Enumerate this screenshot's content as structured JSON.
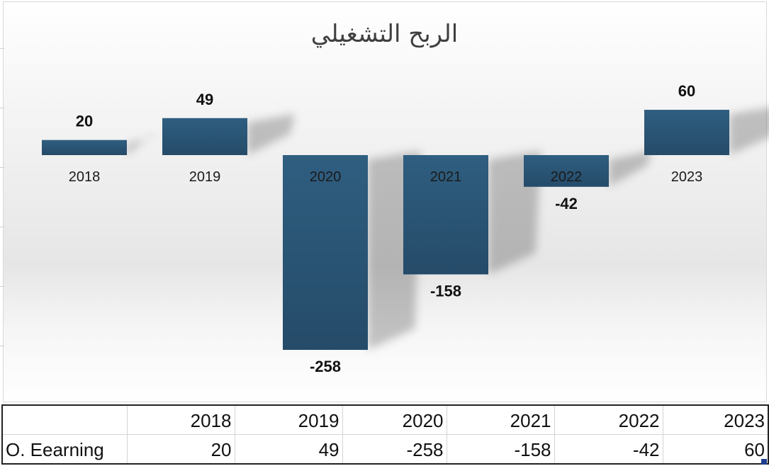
{
  "chart_data": {
    "type": "bar",
    "title": "الربح التشغيلي",
    "categories": [
      "2018",
      "2019",
      "2020",
      "2021",
      "2022",
      "2023"
    ],
    "values": [
      20,
      49,
      -258,
      -158,
      -42,
      60
    ],
    "xlabel": "",
    "ylabel": "",
    "ylim": [
      -300,
      100
    ],
    "legend": "none",
    "bar_color": "#2c5878",
    "grid": false
  },
  "table": {
    "header_blank": "",
    "years": [
      "2018",
      "2019",
      "2020",
      "2021",
      "2022",
      "2023"
    ],
    "row_label": "O. Eearning",
    "row_values": [
      "20",
      "49",
      "-258",
      "-158",
      "-42",
      "60"
    ]
  }
}
